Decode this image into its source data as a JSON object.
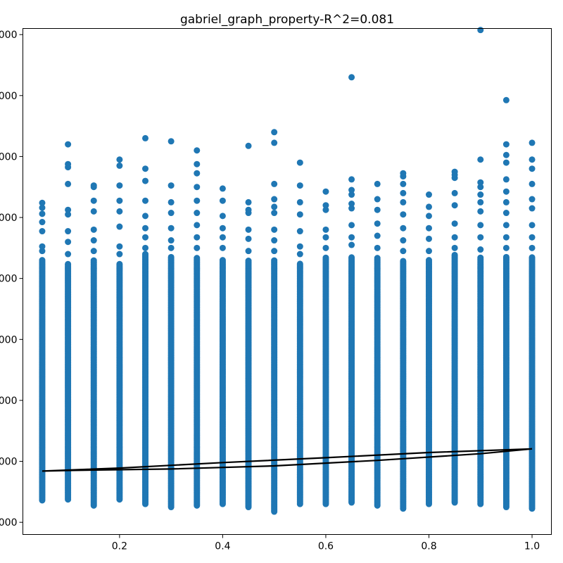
{
  "chart_data": {
    "type": "scatter",
    "title": "gabriel_graph_property-R^2=0.081",
    "xlabel": "",
    "ylabel": "",
    "xlim": [
      0.0125,
      1.0375
    ],
    "ylim": [
      -40,
      1620
    ],
    "x_ticks": [
      {
        "value": 0.2,
        "label": "0.2"
      },
      {
        "value": 0.4,
        "label": "0.4"
      },
      {
        "value": 0.6,
        "label": "0.6"
      },
      {
        "value": 0.8,
        "label": "0.8"
      },
      {
        "value": 1.0,
        "label": "1.0"
      }
    ],
    "y_ticks": [
      {
        "value": 0,
        "label": "000"
      },
      {
        "value": 200,
        "label": "000"
      },
      {
        "value": 400,
        "label": "000"
      },
      {
        "value": 600,
        "label": "000"
      },
      {
        "value": 800,
        "label": "000"
      },
      {
        "value": 1000,
        "label": "000"
      },
      {
        "value": 1200,
        "label": "000"
      },
      {
        "value": 1400,
        "label": "000"
      },
      {
        "value": 1600,
        "label": "000"
      }
    ],
    "grid": false,
    "legend": "none",
    "series": [
      {
        "kind": "scatter",
        "color": "#1f77b4",
        "columns": [
          {
            "x": 0.05,
            "min": 72,
            "max": 860,
            "outliers": [
              890,
              905,
              955,
              985,
              1012,
              1032,
              1048
            ]
          },
          {
            "x": 0.1,
            "min": 75,
            "max": 850,
            "outliers": [
              880,
              920,
              955,
              1010,
              1025,
              1110,
              1165,
              1175,
              1240
            ]
          },
          {
            "x": 0.15,
            "min": 55,
            "max": 860,
            "outliers": [
              890,
              925,
              960,
              1020,
              1055,
              1100,
              1105
            ]
          },
          {
            "x": 0.2,
            "min": 75,
            "max": 850,
            "outliers": [
              880,
              905,
              970,
              1020,
              1055,
              1105,
              1170,
              1190
            ]
          },
          {
            "x": 0.25,
            "min": 60,
            "max": 880,
            "outliers": [
              900,
              935,
              965,
              1005,
              1055,
              1120,
              1160,
              1260
            ]
          },
          {
            "x": 0.3,
            "min": 50,
            "max": 870,
            "outliers": [
              900,
              925,
              965,
              1015,
              1050,
              1105,
              1250
            ]
          },
          {
            "x": 0.35,
            "min": 55,
            "max": 870,
            "outliers": [
              900,
              935,
              975,
              1015,
              1055,
              1100,
              1145,
              1175,
              1220
            ]
          },
          {
            "x": 0.4,
            "min": 60,
            "max": 860,
            "outliers": [
              900,
              935,
              965,
              1005,
              1055,
              1095
            ]
          },
          {
            "x": 0.45,
            "min": 50,
            "max": 860,
            "outliers": [
              890,
              930,
              960,
              1015,
              1025,
              1050,
              1235
            ]
          },
          {
            "x": 0.5,
            "min": 35,
            "max": 860,
            "outliers": [
              890,
              925,
              960,
              1015,
              1035,
              1060,
              1110,
              1245,
              1280
            ]
          },
          {
            "x": 0.55,
            "min": 60,
            "max": 850,
            "outliers": [
              880,
              905,
              955,
              1010,
              1050,
              1105,
              1180
            ]
          },
          {
            "x": 0.6,
            "min": 60,
            "max": 870,
            "outliers": [
              900,
              935,
              960,
              1025,
              1040,
              1085
            ]
          },
          {
            "x": 0.65,
            "min": 65,
            "max": 870,
            "outliers": [
              910,
              935,
              975,
              1030,
              1045,
              1075,
              1090,
              1125,
              1460
            ]
          },
          {
            "x": 0.7,
            "min": 55,
            "max": 870,
            "outliers": [
              900,
              940,
              980,
              1025,
              1060,
              1110
            ]
          },
          {
            "x": 0.75,
            "min": 45,
            "max": 860,
            "outliers": [
              890,
              925,
              965,
              1010,
              1050,
              1080,
              1110,
              1135,
              1145
            ]
          },
          {
            "x": 0.8,
            "min": 60,
            "max": 860,
            "outliers": [
              890,
              930,
              965,
              1005,
              1035,
              1075
            ]
          },
          {
            "x": 0.85,
            "min": 65,
            "max": 880,
            "outliers": [
              900,
              935,
              980,
              1040,
              1080,
              1130,
              1140,
              1150
            ]
          },
          {
            "x": 0.9,
            "min": 60,
            "max": 870,
            "outliers": [
              895,
              935,
              975,
              1020,
              1050,
              1075,
              1100,
              1115,
              1190,
              1615
            ]
          },
          {
            "x": 0.95,
            "min": 50,
            "max": 870,
            "outliers": [
              900,
              935,
              975,
              1015,
              1050,
              1085,
              1125,
              1180,
              1205,
              1240,
              1385
            ]
          },
          {
            "x": 1.0,
            "min": 45,
            "max": 870,
            "outliers": [
              900,
              935,
              975,
              1030,
              1060,
              1110,
              1160,
              1190,
              1245
            ]
          }
        ]
      },
      {
        "kind": "line",
        "color": "#000000",
        "x": [
          0.05,
          0.2,
          0.4,
          0.6,
          0.8,
          1.0,
          0.9,
          0.7,
          0.5,
          0.3,
          0.1,
          0.05
        ],
        "y": [
          168,
          178,
          196,
          212,
          229,
          241,
          225,
          203,
          185,
          175,
          170,
          168
        ]
      }
    ]
  }
}
